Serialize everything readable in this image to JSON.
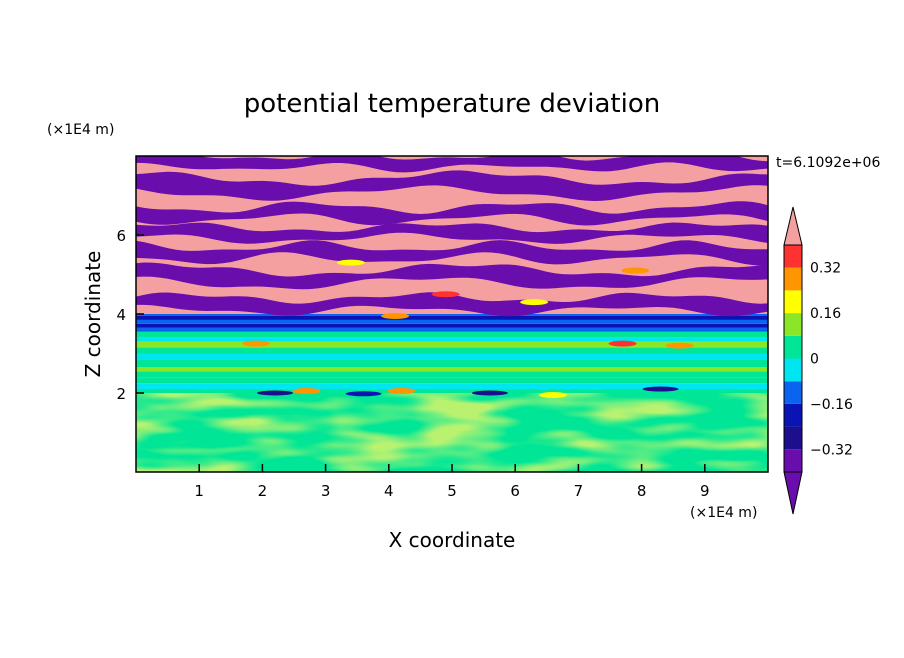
{
  "chart_data": {
    "type": "heatmap",
    "title": "potential temperature deviation",
    "xlabel": "X coordinate",
    "ylabel": "Z coordinate",
    "x_unit": "(×1E4 m)",
    "y_unit": "(×1E4 m)",
    "time_label": "t=6.1092e+06",
    "xlim": [
      0,
      10
    ],
    "ylim": [
      0,
      8
    ],
    "x_ticks": [
      1,
      2,
      3,
      4,
      5,
      6,
      7,
      8,
      9
    ],
    "y_ticks": [
      2,
      4,
      6
    ],
    "grid": false,
    "colorbar": {
      "levels": [
        -0.4,
        -0.32,
        -0.24,
        -0.16,
        -0.08,
        0,
        0.08,
        0.16,
        0.24,
        0.32,
        0.4
      ],
      "tick_labels": [
        "0.32",
        "0.16",
        "0",
        "−0.16",
        "−0.32"
      ],
      "tick_values": [
        0.32,
        0.16,
        0,
        -0.16,
        -0.32
      ],
      "colors": [
        "#6a0dad",
        "#1c0e8c",
        "#0a14b4",
        "#0a64f0",
        "#00e6f0",
        "#00e696",
        "#8ce628",
        "#ffff00",
        "#ff9600",
        "#ff3232",
        "#f4a0a0"
      ],
      "extend": "both"
    },
    "regions": [
      {
        "z_range": [
          0,
          2.0
        ],
        "dominant_value": 0.0,
        "secondary_value": 0.08,
        "description": "green / yellow-green turbulent layer"
      },
      {
        "z_range": [
          2.0,
          3.7
        ],
        "dominant_value": 0.04,
        "description": "horizontal green and cyan stripes"
      },
      {
        "z_range": [
          3.7,
          4.0
        ],
        "dominant_value": -0.12,
        "description": "cyan / blue band"
      },
      {
        "z_range": [
          4.0,
          8.0
        ],
        "dominant_value": "alternating ±0.4",
        "description": "alternating purple and pink layers"
      }
    ]
  }
}
